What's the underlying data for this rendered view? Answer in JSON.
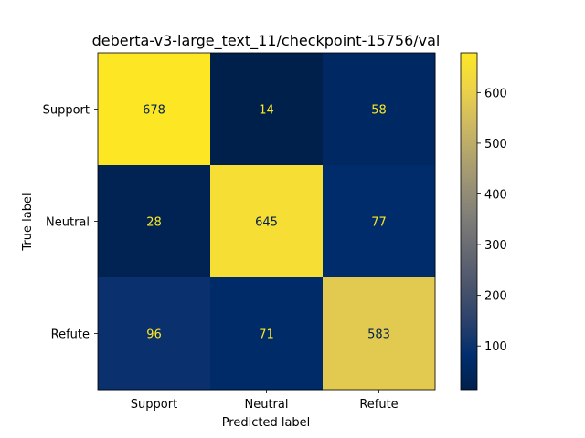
{
  "chart_data": {
    "type": "heatmap",
    "title": "deberta-v3-large_text_11/checkpoint-15756/val",
    "xlabel": "Predicted label",
    "ylabel": "True label",
    "x_categories": [
      "Support",
      "Neutral",
      "Refute"
    ],
    "y_categories": [
      "Support",
      "Neutral",
      "Refute"
    ],
    "values": [
      [
        678,
        14,
        58
      ],
      [
        28,
        645,
        77
      ],
      [
        96,
        71,
        583
      ]
    ],
    "colormap": "cividis",
    "colorbar": {
      "range": [
        14,
        678
      ],
      "ticks": [
        100,
        200,
        300,
        400,
        500,
        600
      ]
    },
    "text_colors": {
      "on_light": "#00204c",
      "on_dark": "#fde724"
    }
  }
}
